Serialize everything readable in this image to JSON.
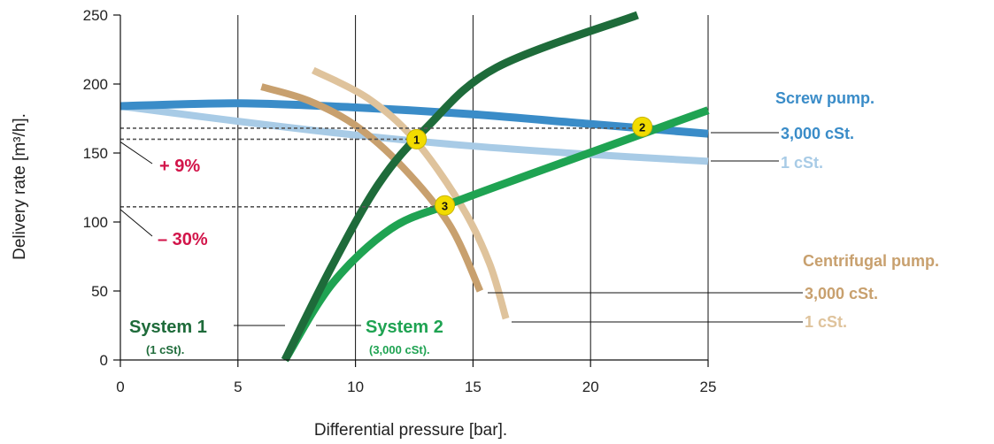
{
  "chart_data": {
    "type": "line",
    "xlabel": "Differential pressure [bar].",
    "ylabel": "Delivery rate [m³/h].",
    "xlim": [
      0,
      25
    ],
    "ylim": [
      0,
      250
    ],
    "xticks": [
      "0",
      "5",
      "10",
      "15",
      "20",
      "25"
    ],
    "yticks": [
      "0",
      "50",
      "100",
      "150",
      "200",
      "250"
    ],
    "grid": "vertical",
    "colors": {
      "screw_3000": "#3a8cc8",
      "screw_1": "#a8cbe6",
      "centrifugal_3000": "#c8a06e",
      "centrifugal_1": "#dfc39c",
      "system_1": "#1e6b3a",
      "system_2": "#1fa352",
      "highlight": "#d2154a",
      "marker": "#f2dc00"
    },
    "series": [
      {
        "key": "screw_3000",
        "x": [
          0,
          5,
          10,
          15,
          20,
          25
        ],
        "y": [
          184,
          186,
          183,
          178,
          171,
          164
        ]
      },
      {
        "key": "screw_1",
        "x": [
          0,
          5,
          10,
          15,
          20,
          25
        ],
        "y": [
          184,
          173,
          163,
          155,
          149,
          144
        ]
      },
      {
        "key": "centrifugal_3000",
        "x": [
          6,
          8,
          10,
          12,
          14,
          15.3
        ],
        "y": [
          198,
          188,
          170,
          140,
          98,
          50
        ]
      },
      {
        "key": "centrifugal_1",
        "x": [
          8.2,
          10.5,
          12.5,
          14.5,
          15.7,
          16.4
        ],
        "y": [
          210,
          190,
          160,
          112,
          70,
          30
        ]
      },
      {
        "key": "system_1",
        "x": [
          7,
          9,
          11,
          13,
          16,
          22
        ],
        "y": [
          0,
          68,
          128,
          168,
          212,
          250
        ]
      },
      {
        "key": "system_2",
        "x": [
          7,
          9,
          11.5,
          14,
          17.5,
          25
        ],
        "y": [
          0,
          55,
          95,
          113,
          135,
          181
        ]
      }
    ],
    "points": [
      {
        "label": "1",
        "x": 12.6,
        "y": 160
      },
      {
        "label": "2",
        "x": 22.2,
        "y": 169
      },
      {
        "label": "3",
        "x": 13.8,
        "y": 112
      }
    ],
    "reference_lines": [
      {
        "y": 168,
        "x_to": 22.2
      },
      {
        "y": 160,
        "x_to": 12.6
      },
      {
        "y": 111,
        "x_to": 13.8
      }
    ],
    "annotations": {
      "plus9": "+ 9%",
      "minus30": "– 30%",
      "screw_title": "Screw pump.",
      "screw_3000": "3,000 cSt.",
      "screw_1": "1 cSt.",
      "centrifugal_title": "Centrifugal pump.",
      "centrifugal_3000": "3,000 cSt.",
      "centrifugal_1": "1 cSt.",
      "system1_name": "System 1",
      "system1_sub": "(1 cSt).",
      "system2_name": "System 2",
      "system2_sub": "(3,000 cSt)."
    }
  }
}
